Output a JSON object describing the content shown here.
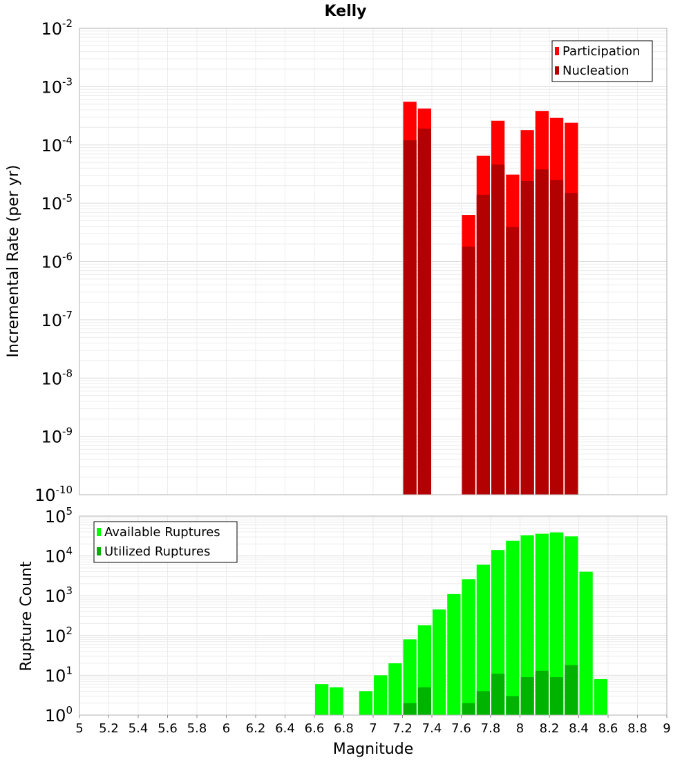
{
  "chart_data": {
    "title": "Kelly",
    "xlabel": "Magnitude",
    "xlim": [
      5,
      9
    ],
    "x_ticks": [
      "5",
      "5.2",
      "5.4",
      "5.6",
      "5.8",
      "6",
      "6.2",
      "6.4",
      "6.6",
      "6.8",
      "7",
      "7.2",
      "7.4",
      "7.6",
      "7.8",
      "8",
      "8.2",
      "8.4",
      "8.6",
      "8.8",
      "9"
    ],
    "bin_width": 0.1,
    "panels": [
      {
        "type": "bar",
        "ylabel": "Incremental Rate (per yr)",
        "yscale": "log",
        "ylim_exponents": [
          -10,
          -2
        ],
        "y_tick_labels": [
          {
            "base": "10",
            "exp": "-2"
          },
          {
            "base": "10",
            "exp": "-3"
          },
          {
            "base": "10",
            "exp": "-4"
          },
          {
            "base": "10",
            "exp": "-5"
          },
          {
            "base": "10",
            "exp": "-6"
          },
          {
            "base": "10",
            "exp": "-7"
          },
          {
            "base": "10",
            "exp": "-8"
          },
          {
            "base": "10",
            "exp": "-9"
          },
          {
            "base": "10",
            "exp": "-10"
          }
        ],
        "legend_position": "top-right",
        "series": [
          {
            "name": "Participation",
            "color": "#ff0000",
            "x": [
              7.25,
              7.35,
              7.65,
              7.75,
              7.85,
              7.95,
              8.05,
              8.15,
              8.25,
              8.35
            ],
            "values": [
              0.00055,
              0.00042,
              6.3e-06,
              6.5e-05,
              0.00026,
              3.1e-05,
              0.00018,
              0.00038,
              0.00029,
              0.00024
            ]
          },
          {
            "name": "Nucleation",
            "color": "#b30000",
            "x": [
              7.25,
              7.35,
              7.65,
              7.75,
              7.85,
              7.95,
              8.05,
              8.15,
              8.25,
              8.35
            ],
            "values": [
              0.00012,
              0.00019,
              1.8e-06,
              1.4e-05,
              4.6e-05,
              3.9e-06,
              2.4e-05,
              3.8e-05,
              2.5e-05,
              1.5e-05
            ]
          }
        ]
      },
      {
        "type": "bar",
        "ylabel": "Rupture Count",
        "yscale": "log",
        "ylim_exponents": [
          0,
          5
        ],
        "y_tick_labels": [
          {
            "base": "10",
            "exp": "5"
          },
          {
            "base": "10",
            "exp": "4"
          },
          {
            "base": "10",
            "exp": "3"
          },
          {
            "base": "10",
            "exp": "2"
          },
          {
            "base": "10",
            "exp": "1"
          },
          {
            "base": "10",
            "exp": "0"
          }
        ],
        "legend_position": "top-left",
        "series": [
          {
            "name": "Available Ruptures",
            "color": "#00ff00",
            "x": [
              6.65,
              6.75,
              6.95,
              7.05,
              7.15,
              7.25,
              7.35,
              7.45,
              7.55,
              7.65,
              7.75,
              7.85,
              7.95,
              8.05,
              8.15,
              8.25,
              8.35,
              8.45,
              8.55
            ],
            "values": [
              6,
              5,
              4,
              10,
              20,
              80,
              180,
              450,
              1100,
              2600,
              6000,
              14000,
              24000,
              33000,
              36000,
              39000,
              31000,
              4000,
              8
            ]
          },
          {
            "name": "Utilized Ruptures",
            "color": "#00b300",
            "x": [
              7.25,
              7.35,
              7.65,
              7.75,
              7.85,
              7.95,
              8.05,
              8.15,
              8.25,
              8.35
            ],
            "values": [
              2,
              5,
              2,
              4,
              11,
              3,
              9,
              13,
              9,
              18
            ]
          }
        ]
      }
    ]
  }
}
